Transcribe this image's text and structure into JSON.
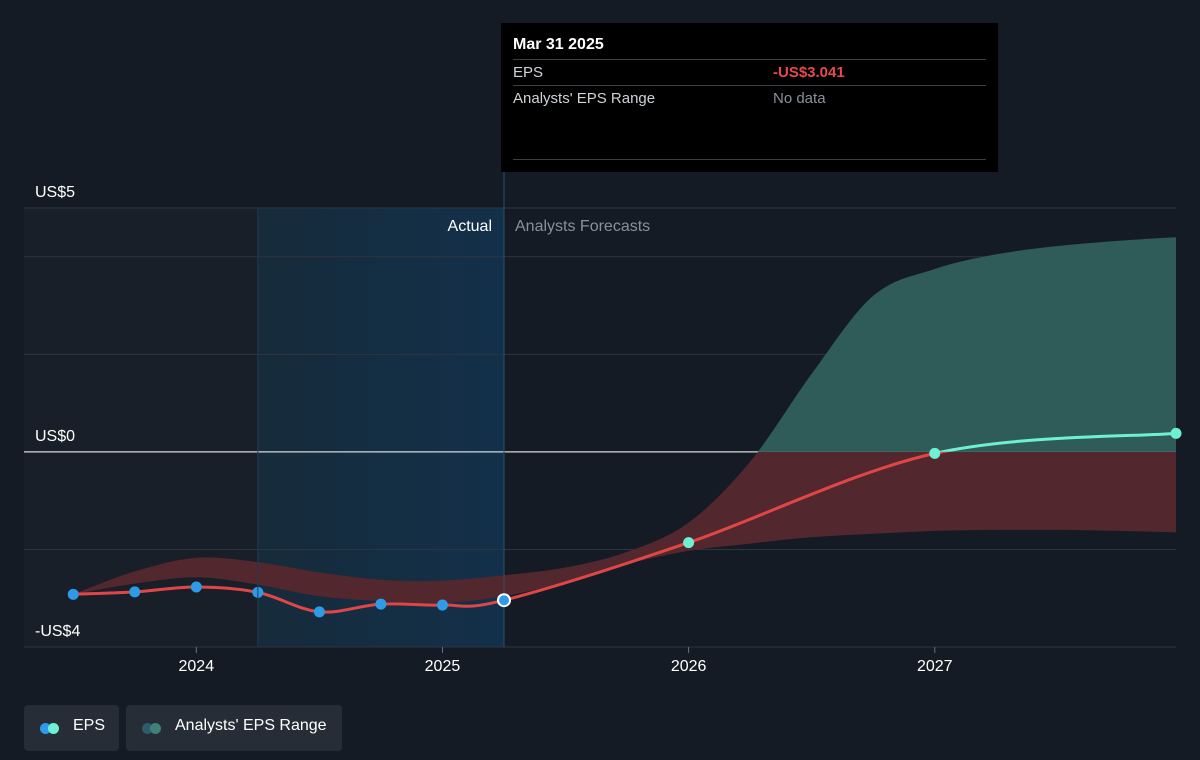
{
  "colors": {
    "background": "#151b24",
    "eps_actual": "#2f9be8",
    "eps_line": "#e04646",
    "eps_forecast": "#6ff0d4",
    "range_positive": "#2f5c58",
    "range_negative": "#52272d",
    "negative_value": "#e64a4a",
    "muted_text": "#8a9099"
  },
  "tooltip": {
    "date": "Mar 31 2025",
    "rows": [
      {
        "label": "EPS",
        "value": "-US$3.041"
      },
      {
        "label": "Analysts' EPS Range",
        "value": "No data"
      }
    ]
  },
  "legend": [
    {
      "label": "EPS",
      "colors": [
        "#2f9be8",
        "#6ff0d4"
      ]
    },
    {
      "label": "Analysts' EPS Range",
      "colors": [
        "#2f5c6b",
        "#3f8079"
      ]
    }
  ],
  "chart_data": {
    "type": "line",
    "region_labels": {
      "past": "Actual",
      "future": "Analysts Forecasts"
    },
    "y_tick_labels": [
      {
        "value": 5,
        "label": "US$5"
      },
      {
        "value": 0,
        "label": "US$0"
      },
      {
        "value": -4,
        "label": "-US$4"
      }
    ],
    "x_tick_labels": [
      {
        "value": 2024.0,
        "label": "2024"
      },
      {
        "value": 2025.0,
        "label": "2025"
      },
      {
        "value": 2026.0,
        "label": "2026"
      },
      {
        "value": 2027.0,
        "label": "2027"
      }
    ],
    "xlim": [
      2023.3,
      2027.98
    ],
    "ylim": [
      -4.0,
      5.0
    ],
    "gridlines_y": [
      5,
      4,
      2,
      0,
      -2,
      -4
    ],
    "divider_x": 2025.25,
    "highlight_start_x": 2024.25,
    "series": [
      {
        "name": "EPS",
        "points": [
          {
            "x": 2023.5,
            "y": -2.92,
            "kind": "actual"
          },
          {
            "x": 2023.75,
            "y": -2.87,
            "kind": "actual"
          },
          {
            "x": 2024.0,
            "y": -2.77,
            "kind": "actual"
          },
          {
            "x": 2024.25,
            "y": -2.88,
            "kind": "actual"
          },
          {
            "x": 2024.5,
            "y": -3.28,
            "kind": "actual"
          },
          {
            "x": 2024.75,
            "y": -3.12,
            "kind": "actual"
          },
          {
            "x": 2025.0,
            "y": -3.14,
            "kind": "actual"
          },
          {
            "x": 2025.25,
            "y": -3.041,
            "kind": "selected"
          },
          {
            "x": 2026.0,
            "y": -1.86,
            "kind": "forecast"
          },
          {
            "x": 2027.0,
            "y": -0.03,
            "kind": "forecast"
          },
          {
            "x": 2027.98,
            "y": 0.38,
            "kind": "forecast"
          }
        ]
      }
    ],
    "analyst_range": {
      "x": [
        2023.5,
        2023.75,
        2024.0,
        2024.25,
        2024.5,
        2024.75,
        2025.0,
        2025.25,
        2025.5,
        2025.75,
        2026.0,
        2026.25,
        2026.5,
        2026.75,
        2027.0,
        2027.25,
        2027.5,
        2027.75,
        2027.98
      ],
      "high": [
        -2.92,
        -2.45,
        -2.17,
        -2.26,
        -2.47,
        -2.62,
        -2.64,
        -2.53,
        -2.37,
        -2.05,
        -1.45,
        -0.2,
        1.6,
        3.2,
        3.75,
        4.05,
        4.22,
        4.33,
        4.4
      ],
      "low": [
        -2.92,
        -2.7,
        -2.57,
        -2.72,
        -2.96,
        -3.06,
        -3.1,
        -2.96,
        -2.67,
        -2.3,
        -2.03,
        -1.88,
        -1.75,
        -1.68,
        -1.62,
        -1.6,
        -1.6,
        -1.62,
        -1.65
      ]
    }
  }
}
